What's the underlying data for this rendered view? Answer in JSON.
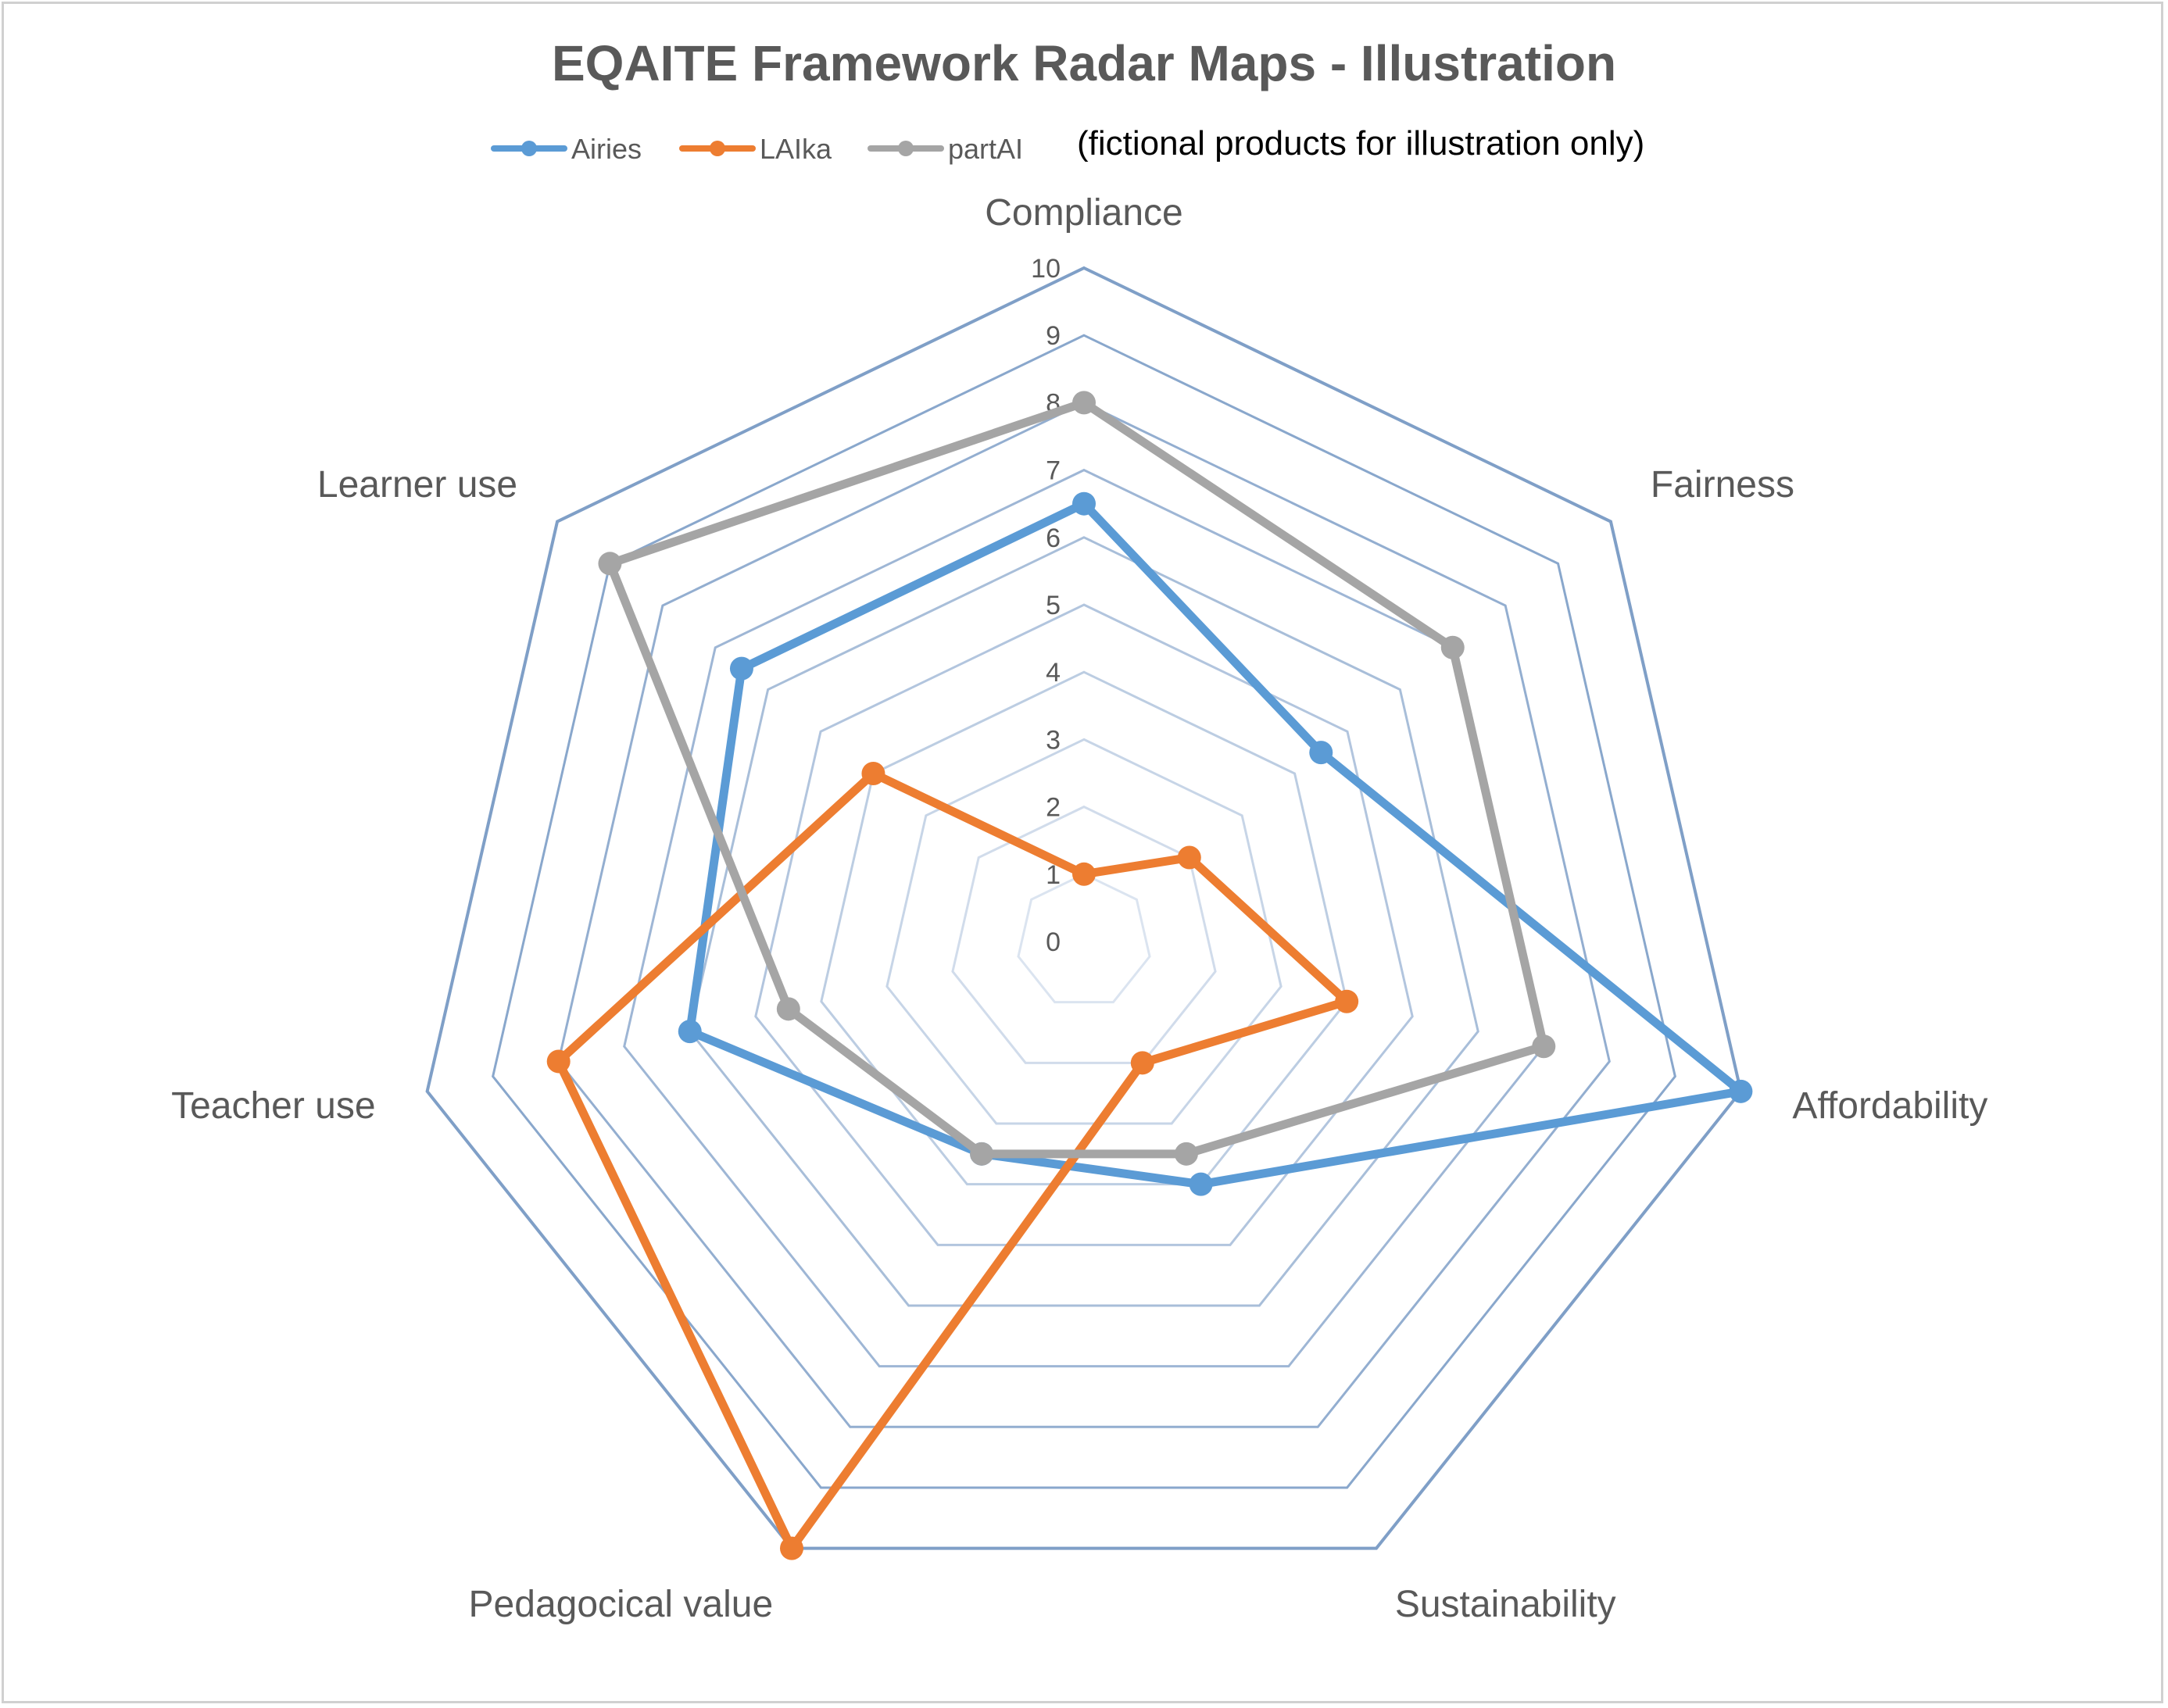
{
  "chart_data": {
    "type": "radar",
    "title": "EQAITE Framework Radar Maps - Illustration",
    "note": "(fictional products for illustration only)",
    "axes": [
      "Compliance",
      "Fairness",
      "Affordability",
      "Sustainability",
      "Pedagocical value",
      "Teacher use",
      "Learner use"
    ],
    "rlim": [
      0,
      10
    ],
    "ticks": [
      "0",
      "1",
      "2",
      "3",
      "4",
      "5",
      "6",
      "7",
      "8",
      "9",
      "10"
    ],
    "legend_position": "top",
    "grid": true,
    "series": [
      {
        "name": "Airies",
        "color": "#5b9bd5",
        "values": [
          6.5,
          4.5,
          10,
          4,
          3.5,
          6,
          6.5
        ]
      },
      {
        "name": "LAIka",
        "color": "#ed7d31",
        "values": [
          1,
          2,
          4,
          2,
          10,
          8,
          4
        ]
      },
      {
        "name": "partAI",
        "color": "#a5a5a5",
        "values": [
          8,
          7,
          7,
          3.5,
          3.5,
          4.5,
          9
        ]
      }
    ]
  },
  "colors": {
    "grid_outer": "#7f9fc7",
    "grid_inner": "#dbe4f0",
    "text": "#595959"
  }
}
